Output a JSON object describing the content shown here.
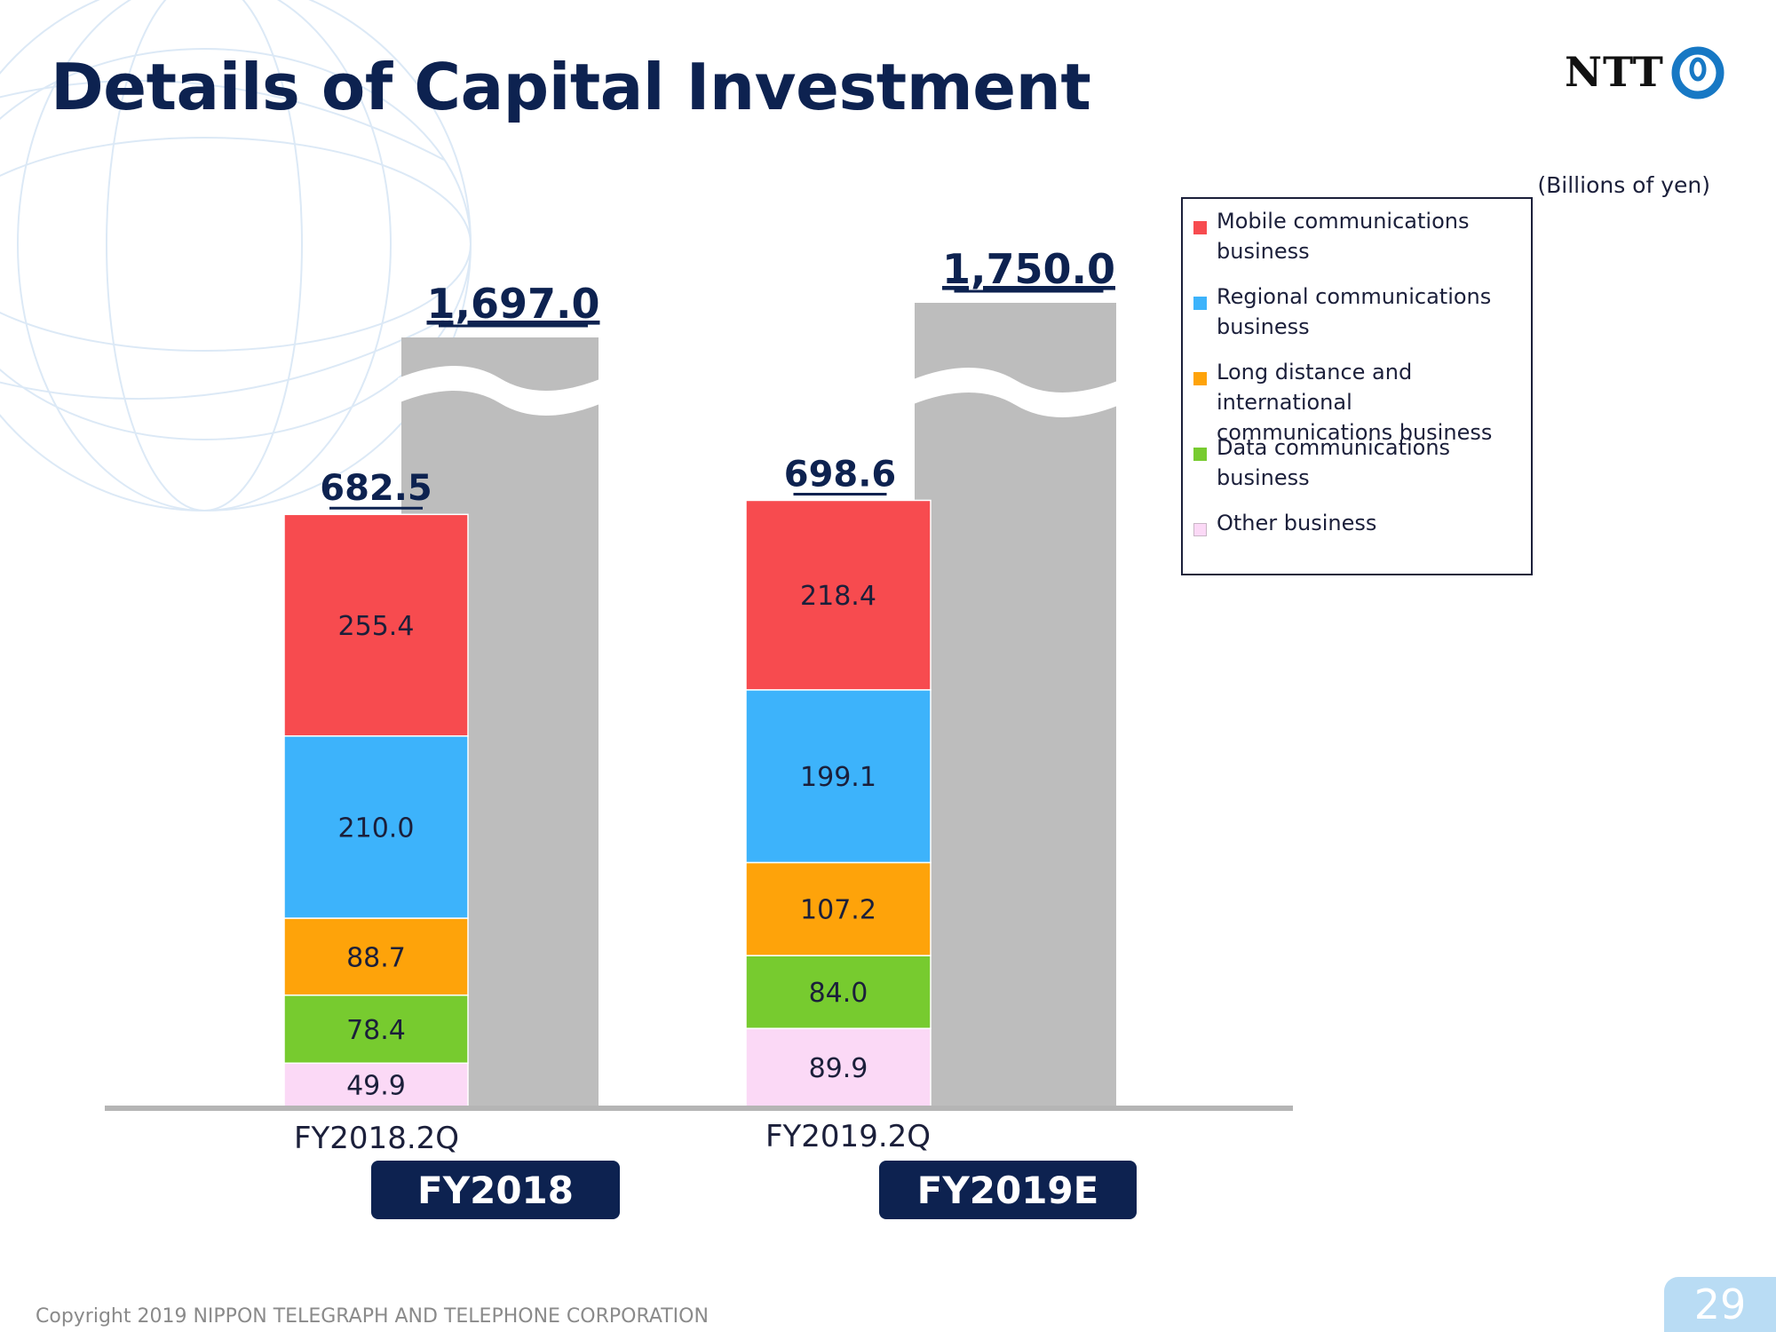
{
  "title": "Details of Capital Investment",
  "logo": {
    "text": "NTT"
  },
  "unit_label": "(Billions of yen)",
  "footer": {
    "copyright": "Copyright 2019 NIPPON TELEGRAPH AND TELEPHONE CORPORATION"
  },
  "page_number": "29",
  "fy_badges": [
    "FY2018",
    "FY2019E"
  ],
  "colors": {
    "mobile": "#f74b4f",
    "regional": "#3db3fb",
    "long_distance": "#fea30a",
    "data": "#77cb2f",
    "other": "#fbd9f6",
    "full_year": "#bdbdbd",
    "title": "#0d2250",
    "logo_mark": "#1778c4"
  },
  "chart_data": {
    "type": "bar",
    "stacked": true,
    "categories": [
      "FY2018.2Q",
      "FY2019.2Q"
    ],
    "series": [
      {
        "name": "Other business",
        "color": "#fbd9f6",
        "values": [
          49.9,
          89.9
        ],
        "labels": [
          "49.9",
          "89.9"
        ]
      },
      {
        "name": "Data communications business",
        "color": "#77cb2f",
        "values": [
          78.4,
          84.0
        ],
        "labels": [
          "78.4",
          "84.0"
        ]
      },
      {
        "name": "Long distance and international communications business",
        "color": "#fea30a",
        "values": [
          88.7,
          107.2
        ],
        "labels": [
          "88.7",
          "107.2"
        ]
      },
      {
        "name": "Regional communications business",
        "color": "#3db3fb",
        "values": [
          210.0,
          199.1
        ],
        "labels": [
          "210.0",
          "199.1"
        ]
      },
      {
        "name": "Mobile communications business",
        "color": "#f74b4f",
        "values": [
          255.4,
          218.4
        ],
        "labels": [
          "255.4",
          "218.4"
        ]
      }
    ],
    "totals": [
      682.5,
      698.6
    ],
    "total_labels": [
      "682.5",
      "698.6"
    ],
    "full_year": {
      "periods": [
        "FY2018",
        "FY2019E"
      ],
      "values": [
        1697.0,
        1750.0
      ],
      "labels": [
        "1,697.0",
        "1,750.0"
      ],
      "axis_break": true
    },
    "legend": {
      "position": "right",
      "order": [
        "Mobile communications business",
        "Regional communications business",
        "Long distance and international communications business",
        "Data communications business",
        "Other business"
      ]
    },
    "unit": "(Billions of yen)",
    "ylim": [
      0,
      760
    ],
    "grid": false
  }
}
